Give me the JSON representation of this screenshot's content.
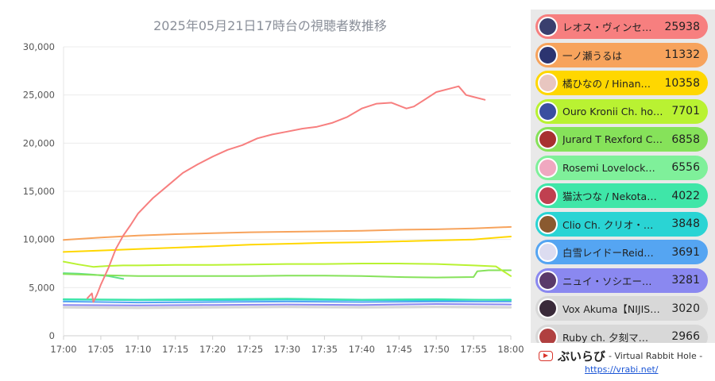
{
  "chart_data": {
    "type": "line",
    "title": "2025年05月21日17時台の視聴者数推移",
    "xlabel": "",
    "ylabel": "",
    "x_ticks": [
      "17:00",
      "17:05",
      "17:10",
      "17:15",
      "17:20",
      "17:25",
      "17:30",
      "17:35",
      "17:40",
      "17:45",
      "17:50",
      "17:55",
      "18:00"
    ],
    "y_ticks": [
      "0",
      "5,000",
      "10,000",
      "15,000",
      "20,000",
      "25,000",
      "30,000"
    ],
    "xlim": [
      0,
      60
    ],
    "ylim": [
      0,
      30000
    ],
    "grid": true,
    "legend_position": "right",
    "series": [
      {
        "name": "レオス・ヴィンセ…",
        "color": "#f77f7f",
        "x": [
          3.2,
          3.8,
          4,
          4.5,
          5,
          6,
          7,
          8,
          9,
          10,
          12,
          14,
          16,
          18,
          20,
          22,
          24,
          26,
          28,
          30,
          32,
          34,
          36,
          38,
          40,
          42,
          44,
          46,
          47,
          48,
          50,
          52,
          53,
          54,
          55,
          56.5
        ],
        "y": [
          3900,
          4400,
          3500,
          4300,
          5300,
          7000,
          9000,
          10400,
          11500,
          12700,
          14300,
          15600,
          16900,
          17800,
          18600,
          19300,
          19800,
          20500,
          20900,
          21200,
          21500,
          21700,
          22100,
          22700,
          23600,
          24100,
          24200,
          23600,
          23800,
          24300,
          25300,
          25700,
          25900,
          25000,
          24800,
          24500
        ]
      },
      {
        "name": "一ノ瀬うるは",
        "color": "#f7a35c",
        "x": [
          0,
          5,
          10,
          15,
          20,
          25,
          30,
          35,
          40,
          45,
          50,
          55,
          60
        ],
        "y": [
          9950,
          10200,
          10400,
          10550,
          10650,
          10750,
          10800,
          10850,
          10900,
          11000,
          11050,
          11150,
          11300
        ]
      },
      {
        "name": "橘ひなの / Hinan…",
        "color": "#ffd700",
        "x": [
          0,
          5,
          10,
          15,
          20,
          25,
          30,
          35,
          40,
          45,
          50,
          55,
          60
        ],
        "y": [
          8700,
          8850,
          9000,
          9150,
          9300,
          9450,
          9550,
          9650,
          9700,
          9800,
          9900,
          10000,
          10300
        ]
      },
      {
        "name": "Ouro Kronii Ch. ho…",
        "color": "#b9f232",
        "x": [
          0,
          2,
          4,
          6,
          8,
          10,
          15,
          20,
          25,
          30,
          35,
          40,
          45,
          50,
          55,
          58,
          60
        ],
        "y": [
          7700,
          7400,
          7150,
          7250,
          7300,
          7300,
          7350,
          7350,
          7400,
          7450,
          7450,
          7500,
          7500,
          7450,
          7300,
          7200,
          6200
        ]
      },
      {
        "name": "Jurard T Rexford C…",
        "color": "#86e25a",
        "x": [
          0,
          5,
          10,
          15,
          20,
          25,
          30,
          35,
          40,
          45,
          50,
          55,
          55.5,
          57,
          60
        ],
        "y": [
          6400,
          6300,
          6200,
          6200,
          6200,
          6200,
          6250,
          6250,
          6200,
          6100,
          6050,
          6100,
          6700,
          6800,
          6800
        ]
      },
      {
        "name": "Rosemi Lovelock…",
        "color": "#5ee08a",
        "x": [
          0,
          2,
          4,
          6,
          8
        ],
        "y": [
          6500,
          6450,
          6350,
          6200,
          5900
        ]
      },
      {
        "name": "猫汰つな / Nekota…",
        "color": "#3fe6a8",
        "x": [
          0,
          10,
          20,
          30,
          40,
          50,
          60
        ],
        "y": [
          3800,
          3750,
          3800,
          3850,
          3750,
          3800,
          3700
        ]
      },
      {
        "name": "Clio Ch. クリオ・…",
        "color": "#2ad4d4",
        "x": [
          0,
          10,
          20,
          30,
          40,
          50,
          60
        ],
        "y": [
          3750,
          3700,
          3700,
          3750,
          3700,
          3700,
          3750
        ]
      },
      {
        "name": "白雪レイドーReid…",
        "color": "#55a5f2",
        "x": [
          0,
          10,
          20,
          30,
          40,
          50,
          60
        ],
        "y": [
          3550,
          3450,
          3500,
          3550,
          3500,
          3550,
          3550
        ]
      },
      {
        "name": "ニュイ・ソシエー…",
        "color": "#8a88f0",
        "x": [
          0,
          10,
          20,
          30,
          40,
          50,
          60
        ],
        "y": [
          3200,
          3150,
          3200,
          3250,
          3200,
          3300,
          3250
        ]
      },
      {
        "name": "Vox Akuma【NIJIS…",
        "color": "#d8d8d8",
        "x": [
          0,
          10,
          20,
          30,
          40,
          50,
          60
        ],
        "y": [
          3000,
          2950,
          3000,
          3050,
          3000,
          3050,
          3000
        ]
      },
      {
        "name": "Ruby ch. 夕刻マ…",
        "color": "#d8d8d8",
        "x": [
          0,
          10,
          20,
          30,
          40,
          50,
          60
        ],
        "y": [
          2900,
          2850,
          2900,
          2950,
          2900,
          2950,
          2900
        ]
      }
    ]
  },
  "legend": {
    "items": [
      {
        "name": "レオス・ヴィンセ…",
        "value": "25938",
        "bg": "#f77f7f",
        "avatar": "#3a3f6e"
      },
      {
        "name": "一ノ瀬うるは",
        "value": "11332",
        "bg": "#f7a35c",
        "avatar": "#2c3470"
      },
      {
        "name": "橘ひなの / Hinan…",
        "value": "10358",
        "bg": "#ffd700",
        "avatar": "#e8c6c0"
      },
      {
        "name": "Ouro Kronii Ch. ho…",
        "value": "7701",
        "bg": "#b9f232",
        "avatar": "#3a4fa0"
      },
      {
        "name": "Jurard T Rexford C…",
        "value": "6858",
        "bg": "#86e25a",
        "avatar": "#a83030"
      },
      {
        "name": "Rosemi Lovelock…",
        "value": "6556",
        "bg": "#7ff09a",
        "avatar": "#f0a8c0"
      },
      {
        "name": "猫汰つな / Nekota…",
        "value": "4022",
        "bg": "#3fe6a8",
        "avatar": "#c04050"
      },
      {
        "name": "Clio Ch. クリオ・…",
        "value": "3848",
        "bg": "#2ad4d4",
        "avatar": "#8a5a30"
      },
      {
        "name": "白雪レイドーReid…",
        "value": "3691",
        "bg": "#55a5f2",
        "avatar": "#dcdcf0"
      },
      {
        "name": "ニュイ・ソシエー…",
        "value": "3281",
        "bg": "#8a88f0",
        "avatar": "#5a3a6a"
      },
      {
        "name": "Vox Akuma【NIJIS…",
        "value": "3020",
        "bg": "#d8d8d8",
        "avatar": "#3a2a3a"
      },
      {
        "name": "Ruby ch. 夕刻マ…",
        "value": "2966",
        "bg": "#d8d8d8",
        "avatar": "#b04040"
      }
    ]
  },
  "footer": {
    "icon": "youtube-play-icon",
    "brand": "ぶいらび",
    "brand_sub": "- Virtual Rabbit Hole -",
    "link": "https://vrabi.net/"
  }
}
